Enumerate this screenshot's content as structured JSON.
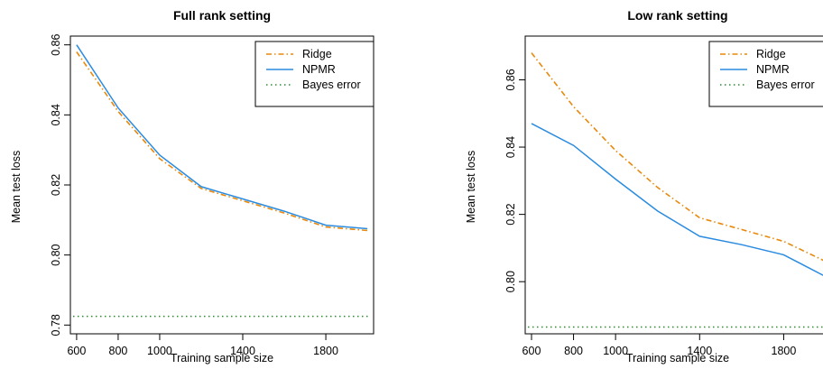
{
  "chart_data": [
    {
      "type": "line",
      "title": "Full rank setting",
      "xlabel": "Training sample size",
      "ylabel": "Mean test loss",
      "x": [
        600,
        800,
        1000,
        1200,
        1400,
        1600,
        1800,
        2000
      ],
      "xticks": [
        600,
        800,
        1000,
        1400,
        1800
      ],
      "yticks": [
        0.78,
        0.8,
        0.82,
        0.84,
        0.86
      ],
      "xlim": [
        570,
        2030
      ],
      "ylim": [
        0.7775,
        0.8625
      ],
      "legend": "top-right",
      "series": [
        {
          "name": "Ridge",
          "color": "#e8890c",
          "dash": "6,3,1.5,3",
          "values": [
            0.858,
            0.841,
            0.8275,
            0.819,
            0.8155,
            0.812,
            0.808,
            0.807
          ]
        },
        {
          "name": "NPMR",
          "color": "#2a8be0",
          "dash": "",
          "values": [
            0.86,
            0.842,
            0.8285,
            0.8195,
            0.816,
            0.8125,
            0.8085,
            0.8075
          ]
        },
        {
          "name": "Bayes error",
          "color": "#2e8b2e",
          "dash": "1.5,3.5",
          "values": [
            0.7825,
            0.7825,
            0.7825,
            0.7825,
            0.7825,
            0.7825,
            0.7825,
            0.7825
          ]
        }
      ]
    },
    {
      "type": "line",
      "title": "Low rank setting",
      "xlabel": "Training sample size",
      "ylabel": "Mean test loss",
      "x": [
        600,
        800,
        1000,
        1200,
        1400,
        1600,
        1800,
        2000
      ],
      "xticks": [
        600,
        800,
        1000,
        1400,
        1800
      ],
      "yticks": [
        0.8,
        0.82,
        0.84,
        0.86
      ],
      "xlim": [
        570,
        2030
      ],
      "ylim": [
        0.7845,
        0.873
      ],
      "legend": "top-right",
      "series": [
        {
          "name": "Ridge",
          "color": "#e8890c",
          "dash": "6,3,1.5,3",
          "values": [
            0.868,
            0.852,
            0.839,
            0.828,
            0.819,
            0.8155,
            0.812,
            0.806
          ]
        },
        {
          "name": "NPMR",
          "color": "#2a8be0",
          "dash": "",
          "values": [
            0.847,
            0.8405,
            0.8305,
            0.821,
            0.8135,
            0.811,
            0.808,
            0.8015
          ]
        },
        {
          "name": "Bayes error",
          "color": "#2e8b2e",
          "dash": "1.5,3.5",
          "values": [
            0.7865,
            0.7865,
            0.7865,
            0.7865,
            0.7865,
            0.7865,
            0.7865,
            0.7865
          ]
        }
      ]
    }
  ]
}
